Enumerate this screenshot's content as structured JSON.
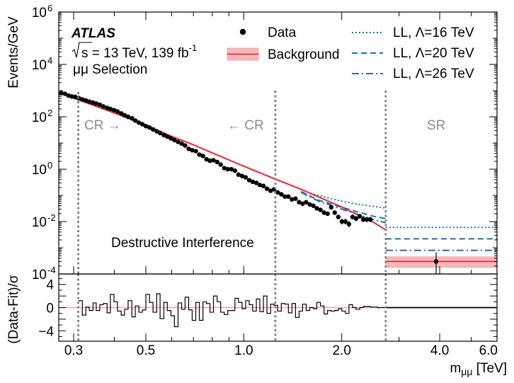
{
  "chart_data": [
    {
      "type": "scatter",
      "xscale": "log",
      "yscale": "log",
      "xlim": [
        0.27,
        6.0
      ],
      "ylim": [
        0.0001,
        1000000
      ],
      "ylabel": "Events/GeV",
      "xlabel": "m",
      "xlabel_sub": "μμ",
      "xlabel_unit": " [TeV]",
      "yticks": [
        {
          "value": 1000000,
          "base": "10",
          "exp": "6"
        },
        {
          "value": 10000,
          "base": "10",
          "exp": "4"
        },
        {
          "value": 100,
          "base": "10",
          "exp": "2"
        },
        {
          "value": 1,
          "base": "10",
          "exp": "0"
        },
        {
          "value": 0.01,
          "base": "10",
          "exp": "-2"
        },
        {
          "value": 0.0001,
          "base": "10",
          "exp": "-4"
        }
      ],
      "xticks": [
        {
          "value": 0.3,
          "label": "0.3"
        },
        {
          "value": 0.5,
          "label": "0.5"
        },
        {
          "value": 1.0,
          "label": "1.0"
        },
        {
          "value": 2.0,
          "label": "2.0"
        },
        {
          "value": 4.0,
          "label": "4.0"
        },
        {
          "value": 6.0,
          "label": "6.0"
        }
      ],
      "boundaries": [
        0.31,
        1.25,
        2.73
      ],
      "atlas": {
        "title": "ATLAS",
        "energy": "s",
        "energy_rest": " = 13 TeV, 139 fb",
        "lumi_exp": "-1",
        "selection": "μμ Selection"
      },
      "regions": {
        "cr_right": "CR →",
        "cr_left": "← CR",
        "sr": "SR",
        "interference": "Destructive Interference"
      },
      "legend": {
        "data": "Data",
        "background": "Background",
        "signals": [
          {
            "name": "LL, Λ=16 TeV",
            "style": "dotted"
          },
          {
            "name": "LL, Λ=20 TeV",
            "style": "dashed"
          },
          {
            "name": "LL, Λ=26 TeV",
            "style": "dashdot"
          }
        ]
      },
      "series": [
        {
          "name": "Data",
          "x": [
            0.275,
            0.282,
            0.289,
            0.296,
            0.303,
            0.311,
            0.319,
            0.327,
            0.335,
            0.344,
            0.352,
            0.361,
            0.37,
            0.38,
            0.389,
            0.399,
            0.409,
            0.42,
            0.43,
            0.441,
            0.453,
            0.464,
            0.476,
            0.488,
            0.5,
            0.513,
            0.526,
            0.54,
            0.553,
            0.568,
            0.582,
            0.597,
            0.612,
            0.628,
            0.644,
            0.66,
            0.677,
            0.694,
            0.712,
            0.73,
            0.749,
            0.768,
            0.787,
            0.807,
            0.828,
            0.849,
            0.871,
            0.893,
            0.916,
            0.939,
            0.963,
            0.988,
            1.013,
            1.039,
            1.065,
            1.093,
            1.12,
            1.149,
            1.178,
            1.209,
            1.239,
            1.271,
            1.304,
            1.337,
            1.371,
            1.406,
            1.442,
            1.479,
            1.516,
            1.555,
            1.595,
            1.636,
            1.677,
            1.72,
            1.764,
            1.809,
            1.856,
            1.903,
            1.952,
            2.002,
            2.053,
            2.105,
            2.159,
            2.214,
            2.271,
            2.329,
            2.388,
            2.449
          ],
          "y": [
            800,
            760,
            650,
            600,
            580,
            520,
            460,
            420,
            380,
            350,
            320,
            290,
            250,
            220,
            200,
            180,
            160,
            135,
            115,
            100,
            88,
            72,
            60,
            52,
            44,
            39,
            33,
            28,
            24,
            20,
            17.5,
            15,
            13,
            11,
            9.5,
            8,
            6,
            5.3,
            4.9,
            3.6,
            3.2,
            2.4,
            2.1,
            2.2,
            1.9,
            1.5,
            1.1,
            1.0,
            1.0,
            0.88,
            0.62,
            0.55,
            0.49,
            0.38,
            0.33,
            0.3,
            0.25,
            0.23,
            0.18,
            0.15,
            0.17,
            0.13,
            0.11,
            0.09,
            0.09,
            0.07,
            0.075,
            0.055,
            0.048,
            0.055,
            0.045,
            0.04,
            0.032,
            0.028,
            0.022,
            0.02,
            0.035,
            0.022,
            0.015,
            0.01,
            0.01,
            0.008,
            0.015,
            0.013,
            0.016,
            0.012,
            0.012,
            0.012
          ]
        },
        {
          "name": "Data",
          "x": [
            3.9
          ],
          "y": [
            0.0003
          ]
        },
        {
          "name": "Background",
          "x": [
            0.275,
            0.3,
            0.4,
            0.5,
            0.6,
            0.7,
            0.8,
            1.0,
            1.25,
            1.5,
            2.0,
            2.5,
            2.73
          ],
          "y": [
            850,
            520,
            140,
            48,
            18,
            8.5,
            4.2,
            1.3,
            0.42,
            0.17,
            0.036,
            0.0095,
            0.0048
          ],
          "sr_level": 0.0003,
          "sr_band": [
            0.00018,
            0.00045
          ]
        },
        {
          "name": "LL, Λ=16 TeV",
          "x": [
            1.6,
            1.8,
            2.0,
            2.2,
            2.5,
            2.73
          ],
          "y": [
            0.12,
            0.082,
            0.06,
            0.048,
            0.038,
            0.033
          ],
          "sr_level": 0.006
        },
        {
          "name": "LL, Λ=20 TeV",
          "x": [
            1.5,
            1.7,
            2.0,
            2.2,
            2.5,
            2.73
          ],
          "y": [
            0.14,
            0.065,
            0.035,
            0.025,
            0.016,
            0.013
          ],
          "sr_level": 0.0022
        },
        {
          "name": "LL, Λ=26 TeV",
          "x": [
            1.5,
            1.7,
            2.0,
            2.2,
            2.5,
            2.73
          ],
          "y": [
            0.13,
            0.06,
            0.03,
            0.02,
            0.012,
            0.009
          ],
          "sr_level": 0.0008
        }
      ]
    },
    {
      "type": "line",
      "xscale": "log",
      "ylim": [
        -5.8,
        5.8
      ],
      "ylabel": "(Data-Fit)/σ",
      "yticks": [
        {
          "value": 4,
          "label": "4"
        },
        {
          "value": 0,
          "label": "0"
        },
        {
          "value": -4,
          "label": "−4"
        }
      ],
      "series": [
        {
          "name": "",
          "x": [
            0.31,
            0.319,
            0.327,
            0.335,
            0.344,
            0.352,
            0.361,
            0.37,
            0.38,
            0.389,
            0.399,
            0.409,
            0.42,
            0.43,
            0.441,
            0.453,
            0.464,
            0.476,
            0.488,
            0.5,
            0.513,
            0.526,
            0.54,
            0.553,
            0.568,
            0.582,
            0.597,
            0.612,
            0.628,
            0.644,
            0.66,
            0.677,
            0.694,
            0.712,
            0.73,
            0.749,
            0.768,
            0.787,
            0.807,
            0.828,
            0.849,
            0.871,
            0.893,
            0.916,
            0.939,
            0.963,
            0.988,
            1.013,
            1.039,
            1.065,
            1.093,
            1.12,
            1.149,
            1.178,
            1.209,
            1.239,
            1.271,
            1.304,
            1.337,
            1.371,
            1.406,
            1.442,
            1.479,
            1.516,
            1.555,
            1.595,
            1.636,
            1.677,
            1.72,
            1.764,
            1.809,
            1.856,
            1.903,
            1.952,
            2.002,
            2.053,
            2.105,
            2.159,
            2.214,
            2.271,
            2.329,
            2.388,
            2.449,
            2.511,
            2.575,
            2.73
          ],
          "y": [
            1.2,
            -1.3,
            0.1,
            -0.5,
            0.8,
            -0.5,
            0.5,
            0.7,
            -0.9,
            2.3,
            1.0,
            -0.6,
            -1.3,
            -0.3,
            1.2,
            -1.6,
            0.3,
            -0.8,
            -0.4,
            2.3,
            0.9,
            -0.8,
            2.4,
            -1.9,
            0.9,
            -0.5,
            -1.4,
            -3.3,
            0.8,
            -0.3,
            1.8,
            -0.4,
            -2.2,
            0.9,
            -2.2,
            1.0,
            0.7,
            -0.8,
            2.0,
            1.0,
            -0.8,
            -1.2,
            -0.5,
            -0.5,
            1.6,
            0.9,
            -0.2,
            1.2,
            0.5,
            -0.6,
            1.5,
            -0.7,
            2.0,
            -1.0,
            0.6,
            0.4,
            -0.6,
            0.7,
            0.6,
            -0.9,
            0.7,
            -1.7,
            -0.6,
            0.6,
            -0.5,
            0.0,
            -0.2,
            0.9,
            0.3,
            -1.1,
            -0.5,
            -0.6,
            -0.5,
            -0.2,
            -0.6,
            -1.0,
            0.5,
            0.0,
            -0.3,
            0.0,
            0.2,
            0.2,
            0.1,
            0.1,
            0.0,
            0.0
          ],
          "sr_level": 0.0
        }
      ]
    }
  ]
}
